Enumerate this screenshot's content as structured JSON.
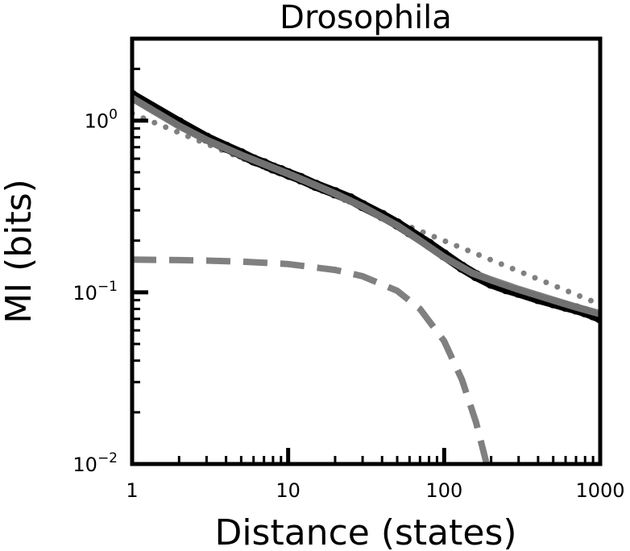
{
  "chart_data": {
    "type": "scatter",
    "title": "Drosophila",
    "xlabel": "Distance (states)",
    "ylabel": "MI (bits)",
    "xscale": "log",
    "yscale": "log",
    "xlim": [
      1,
      1000
    ],
    "ylim": [
      0.01,
      3
    ],
    "grid": false,
    "x_ticks": [
      {
        "value": 1,
        "label": "1"
      },
      {
        "value": 10,
        "label": "10"
      },
      {
        "value": 100,
        "label": "100"
      },
      {
        "value": 1000,
        "label": "1000"
      }
    ],
    "y_ticks": [
      {
        "value": 0.01,
        "base": "10",
        "exp": "−2"
      },
      {
        "value": 0.1,
        "base": "10",
        "exp": "−1"
      },
      {
        "value": 1,
        "base": "10",
        "exp": "0"
      }
    ],
    "series": [
      {
        "style": "markers",
        "color": "#000000",
        "x": [
          1,
          2,
          3,
          4,
          5,
          6,
          7,
          8,
          9,
          10,
          12,
          15,
          20,
          25,
          30,
          40,
          50,
          60,
          80,
          100,
          130,
          160,
          200,
          250,
          300,
          400,
          500,
          600,
          700,
          800,
          900,
          1000
        ],
        "y": [
          1.4,
          0.97,
          0.79,
          0.7,
          0.64,
          0.59,
          0.56,
          0.53,
          0.51,
          0.49,
          0.46,
          0.42,
          0.38,
          0.35,
          0.32,
          0.28,
          0.25,
          0.225,
          0.19,
          0.165,
          0.14,
          0.125,
          0.113,
          0.105,
          0.1,
          0.092,
          0.087,
          0.083,
          0.08,
          0.077,
          0.074,
          0.071
        ]
      },
      {
        "style": "solid",
        "color": "#777777",
        "x": [
          1,
          2,
          3,
          5,
          10,
          15,
          20,
          30,
          50,
          70,
          100,
          150,
          200,
          300,
          500,
          700,
          1000
        ],
        "y": [
          1.35,
          0.93,
          0.77,
          0.63,
          0.49,
          0.42,
          0.375,
          0.315,
          0.245,
          0.2,
          0.16,
          0.13,
          0.118,
          0.104,
          0.09,
          0.082,
          0.075
        ]
      },
      {
        "style": "dotted",
        "color": "#808080",
        "x": [
          1,
          1000
        ],
        "y": [
          1.1,
          0.085
        ]
      },
      {
        "style": "dashed",
        "color": "#808080",
        "x": [
          1,
          2,
          3,
          5,
          10,
          20,
          30,
          50,
          70,
          100,
          130,
          160,
          180,
          190
        ],
        "y": [
          0.155,
          0.154,
          0.153,
          0.151,
          0.146,
          0.135,
          0.124,
          0.102,
          0.08,
          0.052,
          0.031,
          0.0175,
          0.0115,
          0.0095
        ]
      }
    ]
  }
}
